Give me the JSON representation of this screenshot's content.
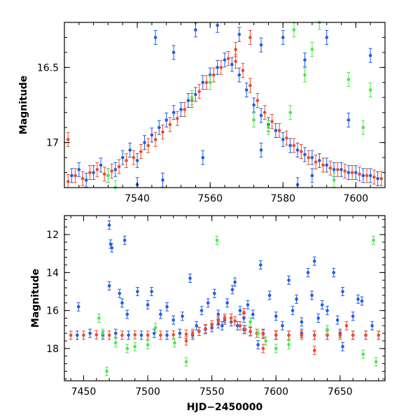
{
  "colors": {
    "blue": "#1f5ee6",
    "red": "#f04a2a",
    "green": "#4ae84a"
  },
  "chart_data": [
    {
      "type": "scatter",
      "title": "",
      "xlabel": "",
      "ylabel": "Magnitude",
      "xlim": [
        7520,
        7608
      ],
      "ylim": [
        17.3,
        16.2
      ],
      "y_inverted": true,
      "x_ticks": [
        7540,
        7560,
        7580,
        7600
      ],
      "y_ticks": [
        16.5,
        17
      ],
      "y_tick_labels": [
        "16.5",
        "17"
      ],
      "error_bars": true,
      "series": [
        {
          "color": "blue",
          "points": [
            [
              7522,
              17.22
            ],
            [
              7524,
              17.18
            ],
            [
              7526,
              17.25
            ],
            [
              7528,
              17.2
            ],
            [
              7530,
              17.15
            ],
            [
              7532,
              17.22
            ],
            [
              7534,
              17.18
            ],
            [
              7536,
              17.1
            ],
            [
              7538,
              17.05
            ],
            [
              7540,
              17.12
            ],
            [
              7542,
              17.0
            ],
            [
              7544,
              16.95
            ],
            [
              7546,
              16.9
            ],
            [
              7548,
              16.85
            ],
            [
              7550,
              16.8
            ],
            [
              7552,
              16.78
            ],
            [
              7554,
              16.72
            ],
            [
              7556,
              16.68
            ],
            [
              7558,
              16.6
            ],
            [
              7560,
              16.55
            ],
            [
              7562,
              16.5
            ],
            [
              7564,
              16.45
            ],
            [
              7566,
              16.48
            ],
            [
              7568,
              16.55
            ],
            [
              7570,
              16.65
            ],
            [
              7572,
              16.75
            ],
            [
              7574,
              16.82
            ],
            [
              7576,
              16.88
            ],
            [
              7578,
              16.92
            ],
            [
              7580,
              16.98
            ],
            [
              7582,
              17.02
            ],
            [
              7584,
              17.05
            ],
            [
              7586,
              17.08
            ],
            [
              7588,
              17.1
            ],
            [
              7590,
              17.12
            ],
            [
              7592,
              17.15
            ],
            [
              7594,
              17.18
            ],
            [
              7596,
              17.18
            ],
            [
              7598,
              17.2
            ],
            [
              7600,
              17.2
            ],
            [
              7602,
              17.22
            ],
            [
              7604,
              17.22
            ],
            [
              7606,
              17.24
            ],
            [
              7545,
              16.3
            ],
            [
              7550,
              16.4
            ],
            [
              7556,
              16.25
            ],
            [
              7562,
              16.22
            ],
            [
              7568,
              16.28
            ],
            [
              7574,
              16.35
            ],
            [
              7580,
              16.3
            ],
            [
              7586,
              16.45
            ],
            [
              7592,
              16.3
            ],
            [
              7598,
              16.85
            ],
            [
              7604,
              16.42
            ],
            [
              7540,
              17.28
            ],
            [
              7547,
              17.25
            ],
            [
              7558,
              17.1
            ],
            [
              7574,
              17.05
            ],
            [
              7584,
              17.28
            ],
            [
              7588,
              17.22
            ]
          ]
        },
        {
          "color": "red",
          "points": [
            [
              7521,
              17.26
            ],
            [
              7523,
              17.22
            ],
            [
              7525,
              17.24
            ],
            [
              7527,
              17.2
            ],
            [
              7529,
              17.18
            ],
            [
              7531,
              17.21
            ],
            [
              7533,
              17.19
            ],
            [
              7535,
              17.16
            ],
            [
              7537,
              17.12
            ],
            [
              7539,
              17.1
            ],
            [
              7541,
              17.06
            ],
            [
              7543,
              17.02
            ],
            [
              7545,
              16.98
            ],
            [
              7547,
              16.93
            ],
            [
              7549,
              16.88
            ],
            [
              7551,
              16.84
            ],
            [
              7553,
              16.78
            ],
            [
              7555,
              16.72
            ],
            [
              7557,
              16.66
            ],
            [
              7559,
              16.6
            ],
            [
              7561,
              16.55
            ],
            [
              7563,
              16.5
            ],
            [
              7565,
              16.44
            ],
            [
              7567,
              16.46
            ],
            [
              7569,
              16.52
            ],
            [
              7571,
              16.62
            ],
            [
              7573,
              16.72
            ],
            [
              7575,
              16.8
            ],
            [
              7577,
              16.86
            ],
            [
              7579,
              16.92
            ],
            [
              7581,
              16.97
            ],
            [
              7583,
              17.02
            ],
            [
              7585,
              17.06
            ],
            [
              7587,
              17.1
            ],
            [
              7589,
              17.13
            ],
            [
              7591,
              17.15
            ],
            [
              7593,
              17.17
            ],
            [
              7595,
              17.18
            ],
            [
              7597,
              17.19
            ],
            [
              7599,
              17.2
            ],
            [
              7601,
              17.21
            ],
            [
              7603,
              17.22
            ],
            [
              7605,
              17.23
            ],
            [
              7607,
              17.24
            ],
            [
              7521,
              16.98
            ],
            [
              7567,
              16.38
            ],
            [
              7571,
              16.3
            ]
          ]
        },
        {
          "color": "green",
          "points": [
            [
              7532,
              17.22
            ],
            [
              7534,
              17.3
            ],
            [
              7555,
              16.7
            ],
            [
              7560,
              16.6
            ],
            [
              7572,
              16.85
            ],
            [
              7576,
              16.9
            ],
            [
              7582,
              16.8
            ],
            [
              7586,
              16.55
            ],
            [
              7588,
              16.38
            ],
            [
              7594,
              17.25
            ],
            [
              7598,
              16.58
            ],
            [
              7602,
              16.9
            ],
            [
              7604,
              16.65
            ],
            [
              7583,
              16.25
            ],
            [
              7590,
              16.2
            ]
          ]
        }
      ]
    },
    {
      "type": "scatter",
      "title": "",
      "xlabel": "HJD−2450000",
      "ylabel": "Magnitude",
      "xlim": [
        7435,
        7685
      ],
      "ylim": [
        19.7,
        11.0
      ],
      "y_inverted": true,
      "x_ticks": [
        7450,
        7500,
        7550,
        7600,
        7650
      ],
      "y_ticks": [
        12,
        14,
        16,
        18
      ],
      "error_bars": true,
      "series": [
        {
          "color": "blue",
          "points": [
            [
              7445,
              17.3
            ],
            [
              7455,
              17.2
            ],
            [
              7465,
              17.3
            ],
            [
              7475,
              17.2
            ],
            [
              7485,
              17.3
            ],
            [
              7495,
              17.3
            ],
            [
              7505,
              17.2
            ],
            [
              7515,
              17.3
            ],
            [
              7525,
              17.2
            ],
            [
              7535,
              17.3
            ],
            [
              7540,
              17.1
            ],
            [
              7545,
              17.0
            ],
            [
              7550,
              16.9
            ],
            [
              7555,
              16.7
            ],
            [
              7560,
              16.5
            ],
            [
              7565,
              16.6
            ],
            [
              7570,
              16.8
            ],
            [
              7575,
              17.0
            ],
            [
              7580,
              17.1
            ],
            [
              7590,
              17.2
            ],
            [
              7600,
              17.3
            ],
            [
              7610,
              17.3
            ],
            [
              7620,
              17.2
            ],
            [
              7630,
              17.3
            ],
            [
              7640,
              17.3
            ],
            [
              7650,
              17.2
            ],
            [
              7660,
              17.3
            ],
            [
              7670,
              17.3
            ],
            [
              7680,
              17.3
            ],
            [
              7446,
              15.8
            ],
            [
              7470,
              11.5
            ],
            [
              7471,
              12.5
            ],
            [
              7472,
              12.7
            ],
            [
              7470,
              14.7
            ],
            [
              7482,
              12.3
            ],
            [
              7478,
              15.1
            ],
            [
              7480,
              15.6
            ],
            [
              7484,
              16.2
            ],
            [
              7492,
              15.0
            ],
            [
              7500,
              15.7
            ],
            [
              7503,
              15.0
            ],
            [
              7510,
              16.2
            ],
            [
              7515,
              15.8
            ],
            [
              7520,
              16.5
            ],
            [
              7527,
              16.3
            ],
            [
              7533,
              14.3
            ],
            [
              7538,
              16.8
            ],
            [
              7542,
              16.0
            ],
            [
              7547,
              15.6
            ],
            [
              7552,
              15.1
            ],
            [
              7555,
              16.2
            ],
            [
              7558,
              16.8
            ],
            [
              7562,
              15.6
            ],
            [
              7566,
              14.9
            ],
            [
              7568,
              14.5
            ],
            [
              7572,
              16.0
            ],
            [
              7575,
              16.4
            ],
            [
              7578,
              15.7
            ],
            [
              7582,
              16.2
            ],
            [
              7586,
              17.8
            ],
            [
              7588,
              13.6
            ],
            [
              7595,
              15.2
            ],
            [
              7600,
              16.3
            ],
            [
              7605,
              16.8
            ],
            [
              7610,
              14.4
            ],
            [
              7613,
              16.0
            ],
            [
              7616,
              15.4
            ],
            [
              7620,
              16.6
            ],
            [
              7625,
              14.0
            ],
            [
              7628,
              15.2
            ],
            [
              7630,
              13.4
            ],
            [
              7633,
              16.4
            ],
            [
              7636,
              15.7
            ],
            [
              7640,
              16.0
            ],
            [
              7645,
              14.0
            ],
            [
              7648,
              16.5
            ],
            [
              7652,
              15.0
            ],
            [
              7660,
              16.3
            ],
            [
              7664,
              15.4
            ],
            [
              7667,
              15.5
            ],
            [
              7675,
              16.8
            ],
            [
              7652,
              17.9
            ]
          ]
        },
        {
          "color": "red",
          "points": [
            [
              7440,
              17.3
            ],
            [
              7450,
              17.3
            ],
            [
              7460,
              17.28
            ],
            [
              7470,
              17.3
            ],
            [
              7480,
              17.3
            ],
            [
              7490,
              17.28
            ],
            [
              7500,
              17.3
            ],
            [
              7510,
              17.3
            ],
            [
              7520,
              17.28
            ],
            [
              7530,
              17.25
            ],
            [
              7535,
              17.2
            ],
            [
              7540,
              17.1
            ],
            [
              7545,
              16.95
            ],
            [
              7550,
              16.75
            ],
            [
              7555,
              16.55
            ],
            [
              7560,
              16.4
            ],
            [
              7565,
              16.4
            ],
            [
              7568,
              16.55
            ],
            [
              7572,
              16.8
            ],
            [
              7576,
              17.0
            ],
            [
              7580,
              17.12
            ],
            [
              7585,
              17.2
            ],
            [
              7590,
              17.25
            ],
            [
              7600,
              17.28
            ],
            [
              7610,
              17.3
            ],
            [
              7620,
              17.3
            ],
            [
              7630,
              17.3
            ],
            [
              7640,
              17.3
            ],
            [
              7650,
              17.3
            ],
            [
              7660,
              17.3
            ],
            [
              7670,
              17.3
            ],
            [
              7680,
              17.3
            ],
            [
              7575,
              16.1
            ],
            [
              7590,
              18.0
            ],
            [
              7630,
              18.1
            ],
            [
              7655,
              16.8
            ],
            [
              7530,
              17.6
            ]
          ]
        },
        {
          "color": "green",
          "points": [
            [
              7462,
              16.4
            ],
            [
              7465,
              17.2
            ],
            [
              7468,
              19.2
            ],
            [
              7475,
              17.7
            ],
            [
              7484,
              18.0
            ],
            [
              7490,
              17.9
            ],
            [
              7500,
              17.8
            ],
            [
              7506,
              16.9
            ],
            [
              7521,
              17.7
            ],
            [
              7530,
              18.7
            ],
            [
              7554,
              12.3
            ],
            [
              7580,
              16.6
            ],
            [
              7586,
              17.2
            ],
            [
              7592,
              17.6
            ],
            [
              7600,
              18.0
            ],
            [
              7610,
              17.8
            ],
            [
              7640,
              17.0
            ],
            [
              7668,
              18.3
            ],
            [
              7676,
              12.3
            ],
            [
              7678,
              18.7
            ]
          ]
        }
      ]
    }
  ]
}
